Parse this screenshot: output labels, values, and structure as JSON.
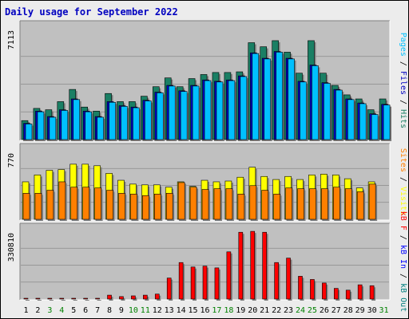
{
  "title": "Daily usage for September 2022",
  "colors": {
    "background": "#ececec",
    "panel": "#c0c0c0",
    "pages": "#00c0ff",
    "files": "#208060",
    "hits": "#1a7f64",
    "visits": "#ffff00",
    "sites": "#ff8000",
    "kb_in": "#0000ff",
    "kb_out": "#007f7f",
    "kb_f": "#ff0000",
    "weekday_label": "#000000",
    "weekend_label": "#008000"
  },
  "chart_data": {
    "type": "bar",
    "x": [
      1,
      2,
      3,
      4,
      5,
      6,
      7,
      8,
      9,
      10,
      11,
      12,
      13,
      14,
      15,
      16,
      17,
      18,
      19,
      20,
      21,
      22,
      23,
      24,
      25,
      26,
      27,
      28,
      29,
      30,
      31
    ],
    "weekend_days": [
      3,
      4,
      10,
      11,
      17,
      18,
      24,
      25,
      31
    ],
    "panels": [
      {
        "name": "hits-files-pages",
        "ymax": 7113,
        "ytick_label": "7113",
        "axis_labels": [
          {
            "text": "Pages",
            "color": "#00c0ff"
          },
          {
            "text": " / ",
            "color": "#000000"
          },
          {
            "text": "Files",
            "color": "#0000c0"
          },
          {
            "text": " / ",
            "color": "#000000"
          },
          {
            "text": "Hits",
            "color": "#1a7f64"
          }
        ],
        "series": [
          {
            "name": "Hits",
            "color": "#1a7f64",
            "values": [
              1400,
              2300,
              2200,
              2800,
              3700,
              2400,
              2100,
              3400,
              2800,
              2800,
              3200,
              3900,
              4550,
              3900,
              4500,
              4800,
              4950,
              4950,
              5000,
              7150,
              6850,
              7300,
              6450,
              4900,
              7300,
              4900,
              4000,
              3300,
              3000,
              2200,
              3000
            ]
          },
          {
            "name": "Files",
            "color": "#0000c0",
            "values": [
              1200,
              2100,
              1700,
              2200,
              3000,
              2100,
              1700,
              2800,
              2500,
              2400,
              2900,
              3500,
              4000,
              3600,
              4000,
              4400,
              4300,
              4400,
              4700,
              6400,
              6000,
              6500,
              6000,
              4300,
              5500,
              4200,
              3700,
              3000,
              2700,
              1900,
              2600
            ]
          },
          {
            "name": "Pages",
            "color": "#00c0ff",
            "values": [
              1150,
              2050,
              1650,
              2150,
              2950,
              2050,
              1650,
              2750,
              2450,
              2350,
              2850,
              3450,
              3950,
              3550,
              3950,
              4350,
              4250,
              4350,
              4650,
              6350,
              5950,
              6450,
              5950,
              4250,
              5450,
              4150,
              3650,
              2950,
              2650,
              1850,
              2550
            ]
          }
        ]
      },
      {
        "name": "visits-sites",
        "ymax": 770,
        "ytick_label": "770",
        "axis_labels": [
          {
            "text": "Sites",
            "color": "#ff8000"
          },
          {
            "text": " / ",
            "color": "#000000"
          },
          {
            "text": "Visits",
            "color": "#ffff00"
          }
        ],
        "series": [
          {
            "name": "Visits",
            "color": "#ffff00",
            "values": [
              490,
              580,
              640,
              650,
              720,
              720,
              700,
              600,
              510,
              460,
              450,
              450,
              420,
              490,
              430,
              510,
              490,
              500,
              550,
              680,
              560,
              520,
              560,
              520,
              580,
              590,
              580,
              530,
              410,
              490,
              0
            ]
          },
          {
            "name": "Sites",
            "color": "#ff8000",
            "values": [
              340,
              340,
              380,
              490,
              420,
              420,
              410,
              380,
              340,
              330,
              310,
              330,
              340,
              480,
              420,
              390,
              400,
              400,
              330,
              440,
              380,
              330,
              410,
              400,
              400,
              400,
              420,
              400,
              360,
              460,
              0
            ]
          }
        ]
      },
      {
        "name": "kbytes",
        "ymax": 330810,
        "ytick_label": "330810",
        "axis_labels": [
          {
            "text": "kB F",
            "color": "#ff0000"
          },
          {
            "text": " / ",
            "color": "#000000"
          },
          {
            "text": "kB In",
            "color": "#0000ff"
          },
          {
            "text": " / ",
            "color": "#000000"
          },
          {
            "text": "kB Out",
            "color": "#007f7f"
          }
        ],
        "series": [
          {
            "name": "kB F",
            "color": "#ff0000",
            "values": [
              2000,
              2000,
              2000,
              2000,
              2000,
              2000,
              2000,
              22000,
              14000,
              18000,
              22000,
              28000,
              118000,
              205000,
              180000,
              185000,
              175000,
              265000,
              375000,
              380000,
              375000,
              205000,
              230000,
              128000,
              110000,
              90000,
              60000,
              50000,
              80000,
              75000,
              0
            ]
          }
        ]
      }
    ]
  }
}
